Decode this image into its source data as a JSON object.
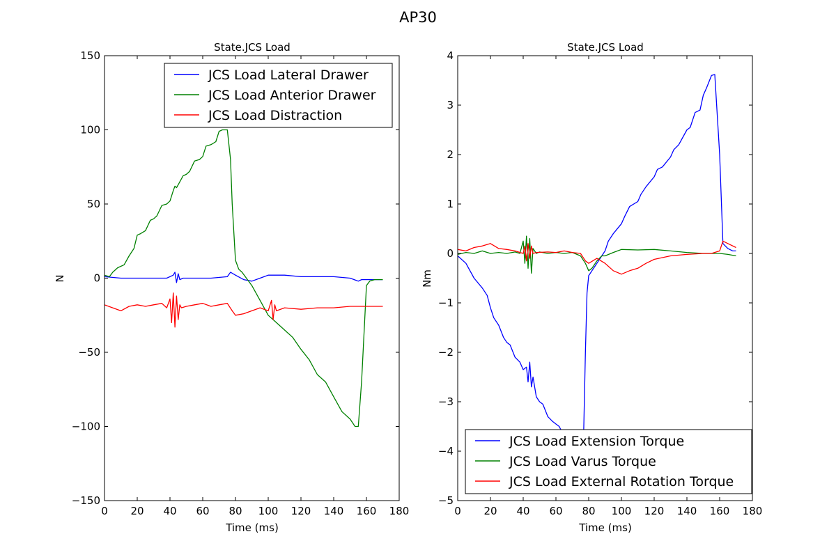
{
  "figure": {
    "title": "AP30"
  },
  "chart_data": [
    {
      "type": "line",
      "title": "State.JCS Load",
      "xlabel": "Time (ms)",
      "ylabel": "N",
      "xlim": [
        0,
        180
      ],
      "ylim": [
        -150,
        150
      ],
      "xticks": [
        0,
        20,
        40,
        60,
        80,
        100,
        120,
        140,
        160,
        180
      ],
      "yticks": [
        -150,
        -100,
        -50,
        0,
        50,
        100,
        150
      ],
      "ytick_labels": [
        "−150",
        "−100",
        "−50",
        "0",
        "50",
        "100",
        "150"
      ],
      "legend_position": "top-right",
      "grid": false,
      "series": [
        {
          "name": "JCS Load Lateral Drawer",
          "color": "#0000ff",
          "x": [
            0,
            10,
            20,
            30,
            38,
            42,
            43,
            44,
            45,
            46,
            48,
            55,
            65,
            75,
            77,
            80,
            85,
            90,
            95,
            100,
            110,
            120,
            130,
            140,
            150,
            155,
            157,
            160,
            165,
            170
          ],
          "y": [
            1,
            0,
            0,
            0,
            0,
            2,
            4,
            -3,
            3,
            -1,
            0,
            0,
            0,
            1,
            4,
            2,
            -1,
            -2,
            0,
            2,
            2,
            1,
            1,
            1,
            0,
            -2,
            -1,
            -1,
            -1,
            -1
          ]
        },
        {
          "name": "JCS Load Anterior Drawer",
          "color": "#008000",
          "x": [
            0,
            3,
            5,
            8,
            12,
            15,
            18,
            20,
            22,
            25,
            28,
            30,
            32,
            35,
            38,
            40,
            42,
            43,
            44,
            45,
            48,
            50,
            52,
            55,
            58,
            60,
            62,
            65,
            68,
            70,
            72,
            75,
            77,
            78,
            80,
            82,
            84,
            86,
            90,
            95,
            100,
            105,
            110,
            115,
            120,
            125,
            130,
            135,
            140,
            145,
            150,
            153,
            155,
            157,
            160,
            162,
            165,
            170
          ],
          "y": [
            2,
            1,
            4,
            7,
            9,
            15,
            20,
            29,
            30,
            32,
            39,
            40,
            42,
            49,
            50,
            52,
            59,
            62,
            61,
            63,
            69,
            70,
            72,
            79,
            80,
            82,
            89,
            90,
            92,
            99,
            100,
            100,
            80,
            50,
            12,
            6,
            4,
            1,
            -5,
            -15,
            -25,
            -30,
            -35,
            -40,
            -48,
            -55,
            -65,
            -70,
            -80,
            -90,
            -95,
            -100,
            -100,
            -70,
            -5,
            -2,
            -1,
            -1
          ]
        },
        {
          "name": "JCS Load Distraction",
          "color": "#ff0000",
          "x": [
            0,
            5,
            10,
            15,
            20,
            25,
            30,
            35,
            38,
            40,
            41,
            42,
            43,
            44,
            45,
            46,
            47,
            50,
            55,
            60,
            65,
            70,
            75,
            78,
            80,
            85,
            90,
            95,
            100,
            102,
            103,
            104,
            105,
            110,
            120,
            130,
            140,
            150,
            160,
            170
          ],
          "y": [
            -18,
            -20,
            -22,
            -19,
            -18,
            -19,
            -18,
            -17,
            -20,
            -14,
            -30,
            -10,
            -33,
            -12,
            -28,
            -18,
            -20,
            -19,
            -18,
            -17,
            -19,
            -18,
            -17,
            -22,
            -25,
            -24,
            -22,
            -20,
            -22,
            -15,
            -28,
            -18,
            -22,
            -20,
            -21,
            -20,
            -20,
            -19,
            -19,
            -19
          ]
        }
      ]
    },
    {
      "type": "line",
      "title": "State.JCS Load",
      "xlabel": "Time (ms)",
      "ylabel": "Nm",
      "xlim": [
        0,
        180
      ],
      "ylim": [
        -5,
        4
      ],
      "xticks": [
        0,
        20,
        40,
        60,
        80,
        100,
        120,
        140,
        160,
        180
      ],
      "yticks": [
        -5,
        -4,
        -3,
        -2,
        -1,
        0,
        1,
        2,
        3,
        4
      ],
      "ytick_labels": [
        "−5",
        "−4",
        "−3",
        "−2",
        "−1",
        "0",
        "1",
        "2",
        "3",
        "4"
      ],
      "legend_position": "bottom-right",
      "grid": false,
      "series": [
        {
          "name": "JCS Load Extension Torque",
          "color": "#0000ff",
          "x": [
            0,
            5,
            10,
            15,
            18,
            20,
            22,
            25,
            28,
            30,
            32,
            35,
            38,
            40,
            42,
            43,
            44,
            45,
            46,
            48,
            50,
            52,
            55,
            58,
            60,
            62,
            65,
            68,
            70,
            72,
            75,
            76,
            77,
            78,
            79,
            80,
            81,
            82,
            85,
            90,
            92,
            95,
            100,
            102,
            105,
            110,
            112,
            115,
            120,
            122,
            125,
            130,
            132,
            135,
            140,
            142,
            145,
            148,
            150,
            152,
            155,
            157,
            160,
            162,
            165,
            168,
            170
          ],
          "y": [
            -0.05,
            -0.2,
            -0.5,
            -0.7,
            -0.85,
            -1.1,
            -1.3,
            -1.45,
            -1.7,
            -1.8,
            -1.85,
            -2.1,
            -2.2,
            -2.35,
            -2.3,
            -2.6,
            -2.2,
            -2.7,
            -2.5,
            -2.9,
            -3.0,
            -3.05,
            -3.3,
            -3.4,
            -3.45,
            -3.5,
            -3.7,
            -3.85,
            -3.9,
            -4.1,
            -4.5,
            -4.7,
            -3.5,
            -2.0,
            -0.8,
            -0.45,
            -0.4,
            -0.35,
            -0.2,
            0.05,
            0.25,
            0.4,
            0.6,
            0.75,
            0.95,
            1.05,
            1.2,
            1.35,
            1.55,
            1.7,
            1.75,
            1.95,
            2.1,
            2.2,
            2.5,
            2.55,
            2.85,
            2.9,
            3.2,
            3.35,
            3.6,
            3.62,
            2.0,
            0.2,
            0.1,
            0.05,
            0.05
          ]
        },
        {
          "name": "JCS Load Varus Torque",
          "color": "#008000",
          "x": [
            0,
            5,
            10,
            15,
            20,
            25,
            30,
            35,
            38,
            40,
            41,
            42,
            43,
            44,
            45,
            46,
            48,
            50,
            55,
            60,
            65,
            70,
            75,
            78,
            80,
            82,
            85,
            88,
            90,
            95,
            100,
            110,
            120,
            130,
            140,
            150,
            160,
            165,
            170
          ],
          "y": [
            -0.02,
            0.02,
            0.0,
            0.05,
            0.0,
            0.02,
            0.0,
            0.03,
            0.0,
            0.25,
            -0.2,
            0.35,
            -0.3,
            0.3,
            -0.4,
            0.1,
            0.0,
            0.03,
            0.0,
            0.02,
            0.0,
            0.02,
            -0.05,
            -0.2,
            -0.35,
            -0.3,
            -0.15,
            -0.05,
            -0.05,
            0.02,
            0.08,
            0.07,
            0.08,
            0.05,
            0.02,
            0.0,
            0.0,
            -0.02,
            -0.05
          ]
        },
        {
          "name": "JCS Load External Rotation Torque",
          "color": "#ff0000",
          "x": [
            0,
            5,
            10,
            15,
            20,
            25,
            30,
            35,
            40,
            41,
            42,
            43,
            44,
            45,
            46,
            48,
            55,
            60,
            65,
            70,
            75,
            78,
            80,
            85,
            90,
            95,
            100,
            105,
            110,
            115,
            120,
            130,
            140,
            150,
            155,
            160,
            162,
            165,
            170
          ],
          "y": [
            0.08,
            0.05,
            0.12,
            0.15,
            0.2,
            0.1,
            0.08,
            0.05,
            0.0,
            0.15,
            -0.15,
            0.2,
            -0.1,
            0.15,
            0.0,
            0.02,
            0.03,
            0.02,
            0.05,
            0.02,
            0.0,
            -0.15,
            -0.2,
            -0.1,
            -0.2,
            -0.35,
            -0.42,
            -0.35,
            -0.3,
            -0.2,
            -0.12,
            -0.05,
            -0.02,
            0.0,
            0.0,
            0.05,
            0.25,
            0.2,
            0.12
          ]
        }
      ]
    }
  ]
}
